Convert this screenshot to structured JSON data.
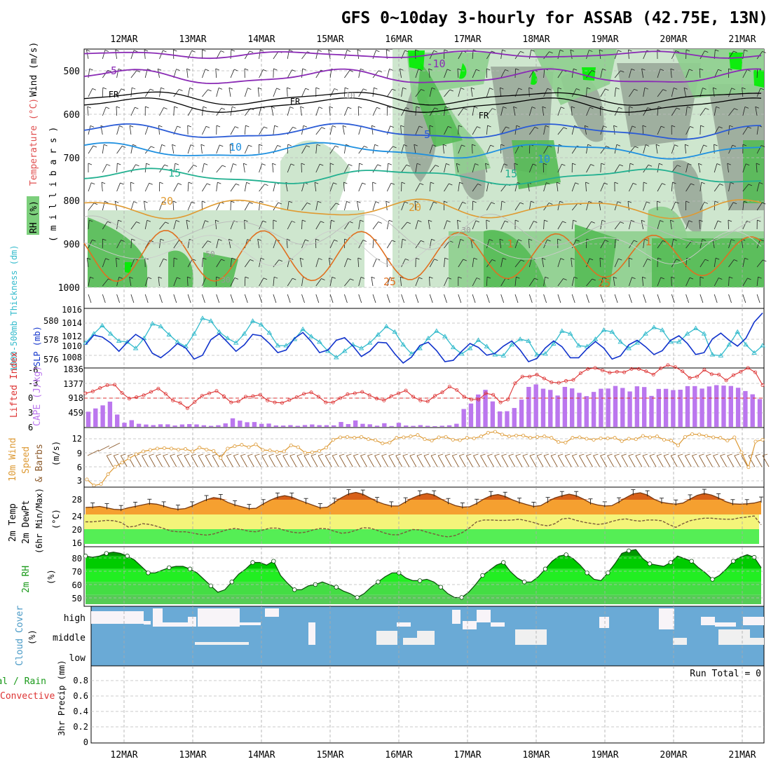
{
  "title": "GFS 0~10day 3-hourly for ASSAB (42.75E, 13N)",
  "date_labels": [
    "12MAR",
    "13MAR",
    "14MAR",
    "15MAR",
    "16MAR",
    "17MAR",
    "18MAR",
    "19MAR",
    "20MAR",
    "21MAR"
  ],
  "colors": {
    "rh_dark": "#55bb55",
    "rh_mid": "#8fcf8f",
    "rh_light": "#c9e3c9",
    "rh_gray": "#9aa89a",
    "rh_bright": "#00ee00",
    "slp": "#1133cc",
    "thickness": "#33bbcc",
    "cape": "#bb77ee",
    "lifted": "#dd3333",
    "wind10": "#dd9933",
    "barb10": "#8b5a2b",
    "temp_fill": "#f5a030",
    "temp_peak": "#d86018",
    "dewpt": "#7a5a3a",
    "cloud": "#6aaad6",
    "cloud_gap": "#f0f0f0"
  },
  "panels": {
    "upper_air": {
      "ylabel_rh": "RH (%)",
      "ylabel_temp": "Temperature (°C)",
      "ylabel_wind": "Wind (m/s)",
      "ylabel_unit": "( m i l l i b a r s )",
      "ticks": [
        "500",
        "600",
        "700",
        "800",
        "900",
        "1000"
      ],
      "contour_labels": [
        "-5",
        "-10",
        "FR",
        "FR",
        "FR",
        "-5",
        "10",
        "10",
        "15",
        "15",
        "20",
        "20",
        "25",
        "1",
        "1",
        "25",
        "30",
        "50",
        "10",
        "30"
      ]
    },
    "slp": {
      "ylabel_left": "1000-500mb Thickness (dm)",
      "ylabel_right": "SLP (mb)",
      "left_ticks": [
        "580",
        "578",
        "576"
      ],
      "right_ticks": [
        "1016",
        "1014",
        "1012",
        "1010",
        "1008"
      ]
    },
    "cape": {
      "ylabel_left": "Lifted Index",
      "ylabel_right": "CAPE (J/kg)",
      "left_ticks": [
        "-6",
        "-3",
        "0",
        "3",
        "6"
      ],
      "right_ticks": [
        "1836",
        "1377",
        "918",
        "459"
      ]
    },
    "wind10": {
      "ylabel_line1": "10m Wind",
      "ylabel_line2": "Speed",
      "ylabel_line3": "& Barbs",
      "ylabel_unit": "(m/s)",
      "ticks": [
        "12",
        "9",
        "6",
        "3"
      ]
    },
    "temp2m": {
      "ylabel_line1": "2m Temp",
      "ylabel_line2": "2m DewPt",
      "ylabel_line3": "(6hr Min/Max)",
      "ylabel_unit": "(°C)",
      "ticks": [
        "28",
        "24",
        "20",
        "16"
      ]
    },
    "rh2m": {
      "ylabel": "2m RH",
      "ylabel_unit": "(%)",
      "ticks": [
        "80",
        "70",
        "60",
        "50"
      ]
    },
    "cloud": {
      "ylabel": "Cloud Cover",
      "ylabel_unit": "(%)",
      "levels": [
        "high",
        "middle",
        "low"
      ]
    },
    "precip": {
      "ylabel_line1": "Total / Rain",
      "ylabel_line2": "Convective",
      "ylabel_unit": "3hr Precip (mm)",
      "ticks": [
        "0.8",
        "0.6",
        "0.4",
        "0.2",
        "0"
      ],
      "run_total": "Run Total = 0"
    }
  },
  "chart_data": [
    {
      "type": "line",
      "title": "",
      "ylabel": "SLP (mb)",
      "series": [
        {
          "name": "SLP (mb)",
          "values": [
            1010.6,
            1012.1,
            1011.8,
            1010.9,
            1009.6,
            1011.0,
            1012.2,
            1011.4,
            1009.3,
            1008.6,
            1009.6,
            1010.8,
            1010.1,
            1008.4,
            1009.0,
            1011.4,
            1012.3,
            1011.0,
            1009.6,
            1010.6,
            1012.2,
            1012.0,
            1010.8,
            1009.4,
            1009.8,
            1011.6,
            1012.5,
            1011.1,
            1009.4,
            1009.8,
            1011.3,
            1011.7,
            1010.4,
            1008.8,
            1009.6,
            1011.0,
            1010.9,
            1009.2,
            1007.8,
            1008.7,
            1010.5,
            1011.0,
            1009.7,
            1008.0,
            1008.2,
            1009.6,
            1010.8,
            1010.2,
            1009.0,
            1009.3,
            1010.4,
            1011.2,
            1009.8,
            1008.0,
            1008.5,
            1010.1,
            1011.2,
            1010.3,
            1008.6,
            1008.6,
            1010.0,
            1011.1,
            1010.1,
            1008.4,
            1008.9,
            1010.6,
            1011.3,
            1010.3,
            1009.1,
            1009.7,
            1011.3,
            1012.0,
            1010.8,
            1009.1,
            1009.4,
            1011.5,
            1012.4,
            1011.3,
            1010.4,
            1011.6,
            1014.1,
            1015.5
          ]
        }
      ]
    },
    {
      "type": "line",
      "title": "",
      "ylabel": "1000-500mb Thickness (dm)",
      "series": [
        {
          "name": "1000-500mb Thickness (dm)",
          "values": [
            577.6,
            578.6,
            579.5,
            578.6,
            577.8,
            577.7,
            577.0,
            578.1,
            579.7,
            579.4,
            578.5,
            577.7,
            577.2,
            578.6,
            580.3,
            580.0,
            578.8,
            578.1,
            577.6,
            578.6,
            580.0,
            579.6,
            578.7,
            577.3,
            577.3,
            578.0,
            579.1,
            578.3,
            577.7,
            576.7,
            576.0,
            576.7,
            577.4,
            577.0,
            577.6,
            578.5,
            579.4,
            578.8,
            577.4,
            576.4,
            577.0,
            578.1,
            578.9,
            578.3,
            577.1,
            576.4,
            577.0,
            577.9,
            577.2,
            576.3,
            576.2,
            577.4,
            578.0,
            577.8,
            576.3,
            576.4,
            577.5,
            578.9,
            578.6,
            577.3,
            577.2,
            578.0,
            579.0,
            578.8,
            577.7,
            577.0,
            577.6,
            578.6,
            579.3,
            579.0,
            577.7,
            577.7,
            578.6,
            579.2,
            578.6,
            576.3,
            576.2,
            577.4,
            578.8,
            577.4,
            576.5,
            577.3
          ]
        }
      ]
    },
    {
      "type": "bar",
      "title": "",
      "ylabel": "CAPE (J/kg)",
      "series": [
        {
          "name": "CAPE (J/kg)",
          "values": [
            484,
            588,
            687,
            805,
            393,
            131,
            213,
            98,
            75,
            57,
            82,
            81,
            43,
            77,
            88,
            78,
            52,
            33,
            52,
            111,
            273,
            199,
            148,
            154,
            96,
            105,
            45,
            42,
            56,
            34,
            58,
            77,
            55,
            54,
            49,
            156,
            89,
            205,
            97,
            82,
            37,
            116,
            27,
            129,
            43,
            32,
            56,
            34,
            23,
            36,
            51,
            99,
            571,
            745,
            1034,
            1183,
            813,
            493,
            500,
            602,
            870,
            1277,
            1356,
            1219,
            1181,
            1001,
            1277,
            1229,
            1087,
            981,
            1116,
            1218,
            1225,
            1307,
            1243,
            1131,
            1296,
            1272,
            989,
            1212,
            1215,
            1175,
            1187,
            1301,
            1302,
            1223,
            1291,
            1332,
            1318,
            1306,
            1249,
            1144,
            1040,
            887
          ]
        }
      ]
    },
    {
      "type": "line",
      "title": "",
      "ylabel": "Lifted Index",
      "series": [
        {
          "name": "Lifted Index",
          "values": [
            -1.0,
            -1.4,
            -2.1,
            -2.7,
            -2.8,
            -1.1,
            0.1,
            -0.2,
            -0.6,
            -1.3,
            -2.0,
            -0.9,
            0.5,
            1.0,
            2.1,
            0.8,
            -0.5,
            -1.0,
            -1.5,
            -0.4,
            0.9,
            0.7,
            -0.3,
            -0.4,
            -0.7,
            0.5,
            0.9,
            1.0,
            0.4,
            -0.2,
            -0.9,
            -1.2,
            -0.3,
            0.9,
            0.9,
            0.0,
            -0.8,
            -1.0,
            -1.3,
            -0.6,
            0.1,
            0.5,
            -0.4,
            -1.0,
            -1.6,
            -0.3,
            0.5,
            0.7,
            -0.5,
            -1.2,
            -2.4,
            -1.7,
            -0.3,
            0.3,
            0.3,
            -1.0,
            -0.7,
            0.9,
            0.3,
            -3.1,
            -4.5,
            -4.5,
            -4.9,
            -4.1,
            -3.3,
            -3.2,
            -3.6,
            -3.8,
            -5.2,
            -6.1,
            -6.3,
            -5.8,
            -5.3,
            -5.5,
            -5.4,
            -6.1,
            -6.1,
            -5.6,
            -4.9,
            -6.2,
            -6.9,
            -6.5,
            -5.6,
            -4.2,
            -4.5,
            -5.9,
            -5.0,
            -4.9,
            -3.7,
            -4.8,
            -5.5,
            -6.3,
            -5.4,
            -2.7
          ]
        }
      ]
    },
    {
      "type": "line",
      "title": "",
      "ylabel": "10m Wind Speed (m/s)",
      "series": [
        {
          "name": "10m Wind Speed (m/s)",
          "values": [
            3.3,
            2.0,
            2.3,
            4.4,
            6.0,
            6.9,
            7.8,
            8.7,
            9.3,
            9.6,
            9.9,
            10.0,
            9.9,
            9.7,
            9.8,
            9.3,
            10.1,
            9.7,
            9.4,
            7.9,
            9.9,
            10.4,
            10.7,
            10.2,
            10.8,
            9.6,
            9.5,
            9.2,
            9.3,
            10.6,
            10.2,
            9.0,
            9.1,
            9.4,
            10.1,
            11.8,
            12.3,
            12.4,
            12.2,
            12.4,
            11.9,
            11.7,
            11.0,
            11.2,
            12.2,
            12.3,
            12.5,
            12.8,
            11.9,
            11.6,
            12.3,
            12.4,
            11.8,
            11.7,
            12.2,
            12.1,
            12.5,
            13.3,
            13.5,
            12.9,
            12.5,
            12.7,
            12.7,
            12.2,
            12.4,
            12.5,
            12.2,
            11.3,
            11.2,
            12.2,
            12.3,
            12.0,
            11.8,
            12.1,
            12.1,
            12.2,
            11.5,
            12.0,
            11.9,
            12.6,
            12.3,
            12.5,
            11.8,
            11.6,
            10.6,
            12.4,
            13.0,
            12.9,
            12.6,
            12.3,
            12.2,
            11.6,
            12.3,
            9.1,
            5.9,
            11.4,
            11.8
          ]
        }
      ]
    },
    {
      "type": "area",
      "title": "",
      "ylabel": "2m Temp (°C)",
      "series": [
        {
          "name": "2m Temp (°C)",
          "values": [
            25.9,
            26.0,
            26.2,
            25.8,
            25.4,
            25.3,
            25.8,
            26.2,
            26.6,
            27.0,
            26.8,
            26.3,
            25.7,
            25.4,
            25.6,
            26.3,
            27.2,
            28.0,
            28.6,
            28.3,
            27.3,
            26.6,
            26.1,
            25.6,
            25.7,
            26.9,
            27.9,
            28.7,
            29.1,
            28.7,
            27.9,
            27.2,
            26.5,
            25.8,
            26.0,
            27.3,
            28.6,
            29.6,
            30.0,
            29.5,
            28.5,
            27.5,
            26.8,
            26.3,
            26.3,
            27.4,
            28.5,
            29.3,
            29.7,
            29.3,
            28.2,
            27.2,
            26.4,
            26.0,
            26.1,
            27.0,
            28.2,
            29.1,
            29.4,
            28.9,
            28.0,
            27.3,
            26.7,
            26.2,
            26.4,
            27.5,
            28.5,
            29.1,
            29.5,
            29.1,
            28.2,
            27.1,
            26.6,
            26.3,
            26.4,
            27.4,
            28.6,
            29.6,
            29.9,
            29.3,
            28.1,
            27.3,
            27.0,
            26.8,
            27.1,
            28.2,
            29.2,
            29.7,
            29.3,
            28.5,
            27.5,
            26.9,
            26.8,
            26.9,
            27.1,
            27.6
          ]
        }
      ]
    },
    {
      "type": "line",
      "title": "",
      "ylabel": "2m DewPt (°C)",
      "series": [
        {
          "name": "2m DewPt (°C)",
          "values": [
            22.0,
            22.0,
            22.2,
            22.4,
            22.3,
            21.8,
            20.6,
            20.8,
            21.5,
            21.3,
            20.8,
            20.2,
            19.5,
            19.3,
            19.3,
            19.0,
            18.6,
            18.4,
            18.7,
            19.3,
            19.9,
            20.2,
            19.9,
            19.4,
            19.3,
            19.8,
            20.3,
            20.3,
            19.7,
            19.2,
            19.0,
            19.2,
            19.8,
            20.2,
            20.1,
            19.4,
            18.9,
            19.1,
            19.7,
            20.4,
            20.3,
            19.7,
            19.0,
            18.5,
            18.5,
            19.2,
            19.9,
            19.8,
            19.2,
            18.7,
            18.2,
            17.9,
            18.3,
            19.1,
            20.4,
            22.0,
            22.5,
            22.5,
            22.4,
            22.4,
            22.5,
            22.7,
            22.3,
            21.8,
            21.2,
            20.9,
            21.5,
            22.8,
            23.0,
            22.4,
            21.9,
            21.6,
            21.3,
            21.5,
            22.1,
            22.6,
            22.8,
            22.4,
            22.2,
            22.5,
            22.5,
            22.3,
            21.3,
            20.5,
            21.5,
            22.3,
            22.7,
            23.0,
            23.0,
            22.8,
            22.7,
            22.7,
            23.1,
            23.3,
            23.6,
            21.2
          ]
        }
      ]
    },
    {
      "type": "area",
      "title": "",
      "ylabel": "2m RH (%)",
      "series": [
        {
          "name": "2m RH (%)",
          "values": [
            80,
            79,
            80,
            82,
            83,
            82,
            80,
            77,
            72,
            67,
            67,
            69,
            71,
            72,
            72,
            70,
            67,
            62,
            57,
            52,
            54,
            60,
            66,
            70,
            75,
            75,
            73,
            76,
            65,
            59,
            54,
            54,
            57,
            58,
            60,
            58,
            56,
            53,
            51,
            48,
            51,
            56,
            60,
            64,
            67,
            67,
            63,
            61,
            61,
            62,
            60,
            56,
            51,
            48,
            48,
            52,
            58,
            65,
            69,
            73,
            75,
            68,
            63,
            60,
            60,
            64,
            70,
            76,
            80,
            81,
            78,
            73,
            67,
            62,
            61,
            67,
            74,
            82,
            84,
            85,
            78,
            74,
            73,
            72,
            75,
            80,
            78,
            76,
            71,
            67,
            62,
            65,
            70,
            76,
            79,
            81,
            79,
            71
          ]
        }
      ]
    }
  ]
}
